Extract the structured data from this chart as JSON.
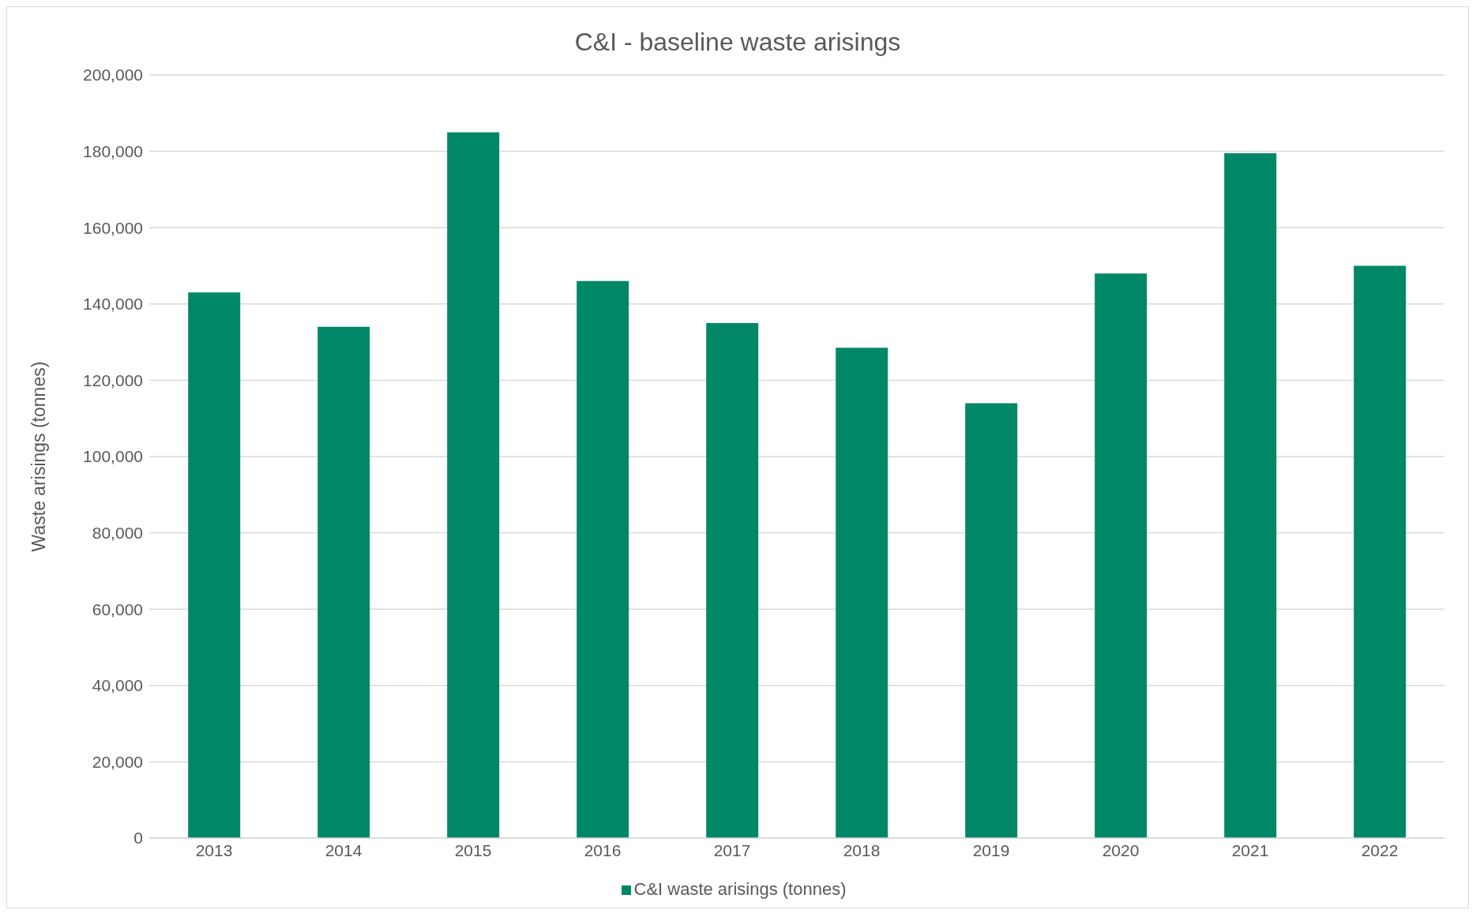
{
  "chart_data": {
    "type": "bar",
    "title": "C&I - baseline waste arisings",
    "ylabel": "Waste arisings (tonnes)",
    "categories": [
      "2013",
      "2014",
      "2015",
      "2016",
      "2017",
      "2018",
      "2019",
      "2020",
      "2021",
      "2022"
    ],
    "series": [
      {
        "name": "C&I waste arisings (tonnes)",
        "color": "#008866",
        "values": [
          143000,
          134000,
          185000,
          146000,
          135000,
          128500,
          114000,
          148000,
          179500,
          150000
        ]
      }
    ],
    "ylim": [
      0,
      200000
    ],
    "yticks": [
      0,
      {
        "value": 20000,
        "label": "20,000"
      },
      {
        "value": 40000,
        "label": "40,000"
      },
      {
        "value": 60000,
        "label": "60,000"
      },
      {
        "value": 80000,
        "label": "80,000"
      },
      {
        "value": 100000,
        "label": "100,000"
      },
      {
        "value": 120000,
        "label": "120,000"
      },
      {
        "value": 140000,
        "label": "140,000"
      },
      {
        "value": 160000,
        "label": "160,000"
      },
      {
        "value": 180000,
        "label": "180,000"
      },
      {
        "value": 200000,
        "label": "200,000"
      }
    ],
    "grid": "y",
    "legend": "bottom"
  }
}
